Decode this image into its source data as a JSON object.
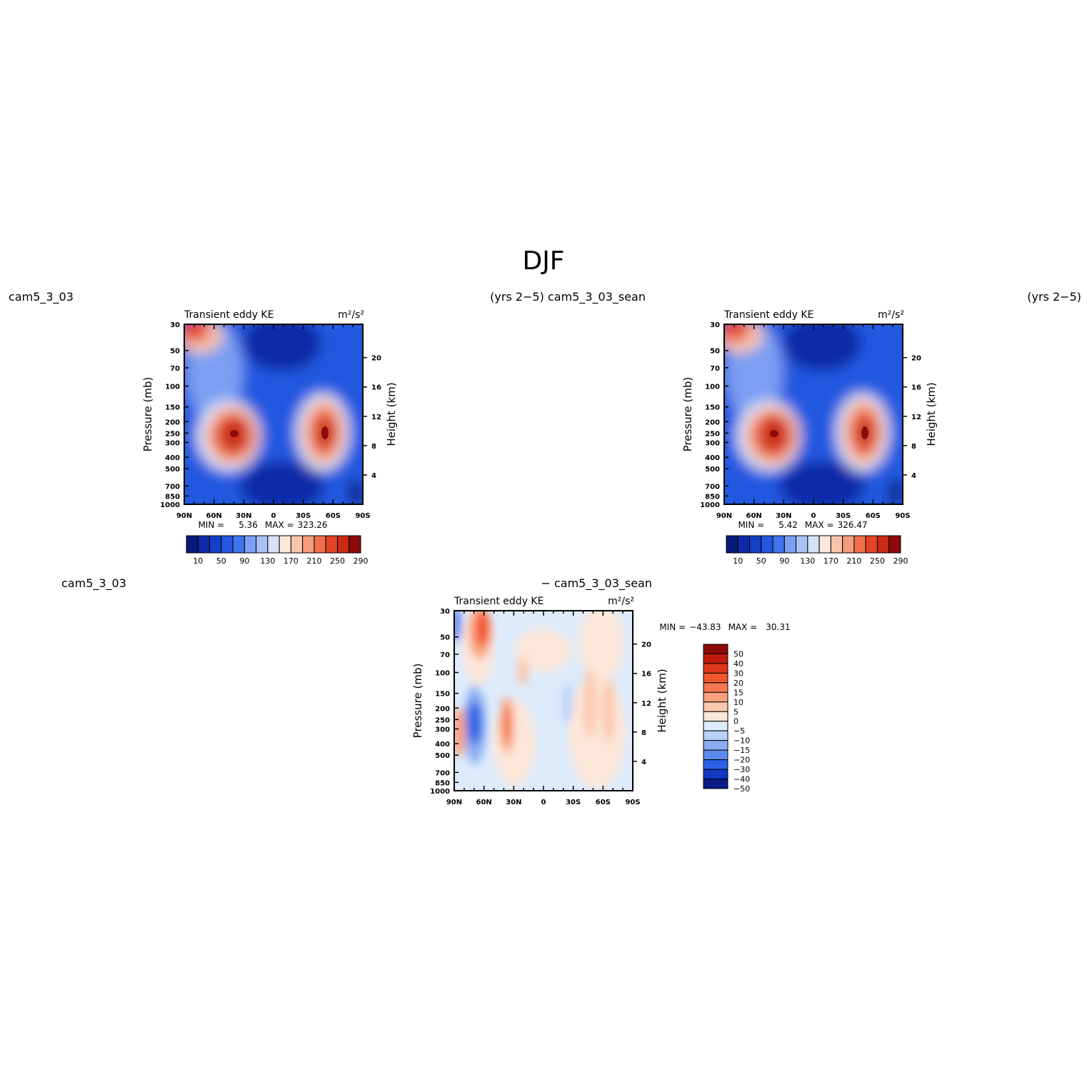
{
  "page_title": "DJF",
  "headers": {
    "left_case": "cam5_3_03",
    "mid_case": "(yrs 2−5) cam5_3_03_sean",
    "right_years": "(yrs 2−5)",
    "diff_left": "cam5_3_03",
    "diff_right": "− cam5_3_03_sean"
  },
  "chart_data": [
    {
      "type": "heatmap",
      "id": "panel-model",
      "title": "Transient eddy KE",
      "units": "m²/s²",
      "ylabel": "Pressure (mb)",
      "ylabel_right": "Height (km)",
      "x_ticks": [
        "90N",
        "60N",
        "30N",
        "0",
        "30S",
        "60S",
        "90S"
      ],
      "xlim": [
        90,
        -90
      ],
      "y_ticks": [
        30,
        50,
        70,
        100,
        150,
        200,
        250,
        300,
        400,
        500,
        700,
        850,
        1000
      ],
      "ylim": [
        30,
        1000
      ],
      "y_scale": "log",
      "right_ticks": [
        4,
        8,
        12,
        16,
        20
      ],
      "stats_min_label": "MIN =",
      "stats_min": "5.36",
      "stats_max_label": "MAX =",
      "stats_max": "323.26",
      "colorbar": {
        "orientation": "horizontal",
        "labels": [
          "10",
          "50",
          "90",
          "130",
          "170",
          "210",
          "250",
          "290"
        ],
        "colors": [
          "#0a1a7a",
          "#0f2aa8",
          "#1440c8",
          "#2458e0",
          "#3f74ee",
          "#7c9ff2",
          "#a9c2f6",
          "#d4e2fa",
          "#fbe9dc",
          "#f9c5aa",
          "#f59c7c",
          "#ef6f4c",
          "#e34426",
          "#c92a12",
          "#8c0a0a"
        ]
      },
      "features": [
        {
          "lat": 40,
          "p": 270,
          "peak": "~320"
        },
        {
          "lat": -48,
          "p": 270,
          "peak": "~300"
        },
        {
          "lat": 85,
          "p": 35,
          "peak": "~250"
        }
      ]
    },
    {
      "type": "heatmap",
      "id": "panel-control",
      "title": "Transient eddy KE",
      "units": "m²/s²",
      "ylabel": "Pressure (mb)",
      "ylabel_right": "Height (km)",
      "x_ticks": [
        "90N",
        "60N",
        "30N",
        "0",
        "30S",
        "60S",
        "90S"
      ],
      "xlim": [
        90,
        -90
      ],
      "y_ticks": [
        30,
        50,
        70,
        100,
        150,
        200,
        250,
        300,
        400,
        500,
        700,
        850,
        1000
      ],
      "ylim": [
        30,
        1000
      ],
      "y_scale": "log",
      "right_ticks": [
        4,
        8,
        12,
        16,
        20
      ],
      "stats_min_label": "MIN =",
      "stats_min": "5.42",
      "stats_max_label": "MAX =",
      "stats_max": "326.47",
      "colorbar": {
        "orientation": "horizontal",
        "labels": [
          "10",
          "50",
          "90",
          "130",
          "170",
          "210",
          "250",
          "290"
        ],
        "colors": [
          "#0a1a7a",
          "#0f2aa8",
          "#1440c8",
          "#2458e0",
          "#3f74ee",
          "#7c9ff2",
          "#a9c2f6",
          "#d4e2fa",
          "#fbe9dc",
          "#f9c5aa",
          "#f59c7c",
          "#ef6f4c",
          "#e34426",
          "#c92a12",
          "#8c0a0a"
        ]
      }
    },
    {
      "type": "heatmap",
      "id": "panel-diff",
      "title": "Transient eddy KE",
      "units": "m²/s²",
      "ylabel": "Pressure (mb)",
      "ylabel_right": "Height (km)",
      "x_ticks": [
        "90N",
        "60N",
        "30N",
        "0",
        "30S",
        "60S",
        "90S"
      ],
      "xlim": [
        90,
        -90
      ],
      "y_ticks": [
        30,
        50,
        70,
        100,
        150,
        200,
        250,
        300,
        400,
        500,
        700,
        850,
        1000
      ],
      "ylim": [
        30,
        1000
      ],
      "y_scale": "log",
      "right_ticks": [
        4,
        8,
        12,
        16,
        20
      ],
      "stats_min_label": "MIN =",
      "stats_min": "−43.83",
      "stats_max_label": "MAX =",
      "stats_max": "30.31",
      "colorbar": {
        "orientation": "vertical",
        "labels": [
          "50",
          "40",
          "30",
          "20",
          "15",
          "10",
          "5",
          "0",
          "−5",
          "−10",
          "−15",
          "−20",
          "−30",
          "−40",
          "−50"
        ],
        "colors": [
          "#8c0a0a",
          "#c01a0e",
          "#e0361a",
          "#f2562c",
          "#f57850",
          "#f9a07e",
          "#fbc7ad",
          "#fde7d9",
          "#ddebfc",
          "#b9d0f8",
          "#8aaef2",
          "#5a8aee",
          "#2a60e6",
          "#1238c4",
          "#0a1a88"
        ]
      }
    }
  ]
}
